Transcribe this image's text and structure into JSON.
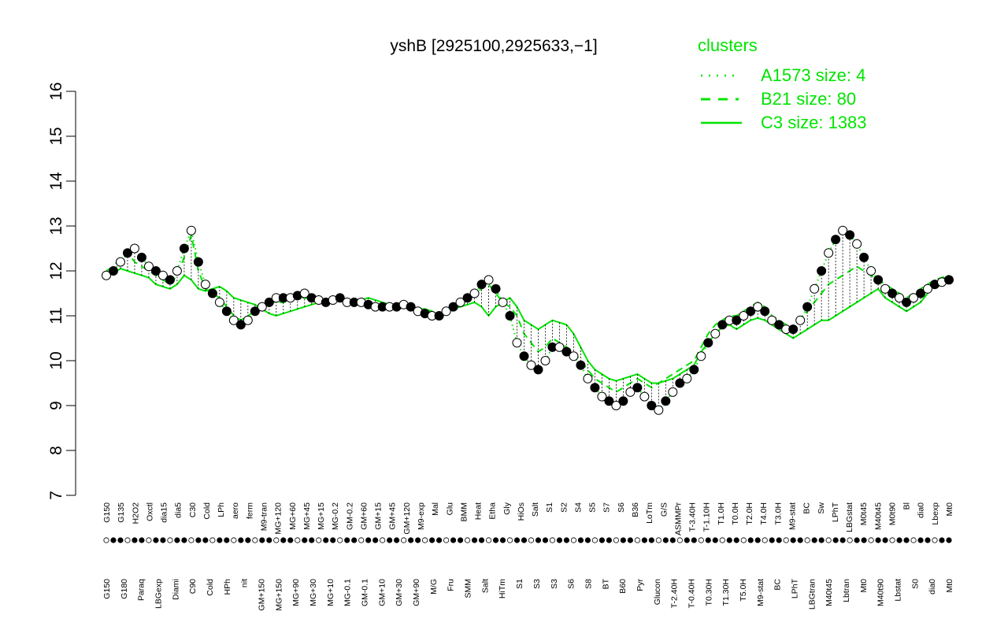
{
  "chart_data": {
    "type": "line",
    "title": "yshB [2925100,2925633,−1]",
    "xlabel": "",
    "ylabel": "",
    "ylim": [
      7,
      16
    ],
    "yticks": [
      7,
      8,
      9,
      10,
      11,
      12,
      13,
      14,
      15,
      16
    ],
    "grid": false,
    "legend": {
      "title": "clusters",
      "placement": "top-right",
      "entries": [
        {
          "label": "A1573 size: 4",
          "style": "dotted"
        },
        {
          "label": "B21 size: 80",
          "style": "dashed"
        },
        {
          "label": "C3 size: 1383",
          "style": "solid"
        }
      ]
    },
    "colors": {
      "cluster_lines": "#00e400",
      "points": "#000000",
      "axis": "#000000"
    },
    "x_labels_top": [
      "G150",
      "G135",
      "H2O2",
      "Oxctl",
      "dia15",
      "dia5",
      "C30",
      "Cold",
      "LPh",
      "aero",
      "ferm",
      "M9-tran",
      "MG+120",
      "MG+60",
      "MG+45",
      "MG+15",
      "MG-0.2",
      "GM-0.2",
      "GM+60",
      "GM+15",
      "GM+45",
      "GM+120",
      "M9-exp",
      "Mal",
      "Glu",
      "BMM",
      "Heat",
      "Etha",
      "Gly",
      "HiOs",
      "Salt",
      "S1",
      "S2",
      "S4",
      "S5",
      "S7",
      "S6",
      "B36",
      "LoTm",
      "G/S",
      "ASMMPr",
      "T-3.40H",
      "T-1.10H",
      "T1.0H",
      "T0.0H",
      "T2.0H",
      "T4.0H",
      "T3.0H",
      "M9-stat",
      "BC",
      "Sw",
      "LPhT",
      "LBGstat",
      "M0t45",
      "M40t45",
      "M0t90",
      "Bl",
      "dia0",
      "Lbexp",
      "Mt0"
    ],
    "x_labels_bottom": [
      "G150",
      "G180",
      "Paraq",
      "LBGexp",
      "Diami",
      "C90",
      "Cold",
      "HPh",
      "nit",
      "GM+150",
      "MG+150",
      "MG+90",
      "MG+30",
      "MG+10",
      "MG-0.1",
      "GM-0.1",
      "GM+10",
      "GM+30",
      "GM+90",
      "M/G",
      "Fru",
      "SMM",
      "Salt",
      "HiTm",
      "S1",
      "S3",
      "S3",
      "S6",
      "S8",
      "BT",
      "B60",
      "Pyr",
      "Glucon",
      "T-2.40H",
      "T-0.40H",
      "T0.30H",
      "T1.30H",
      "T5.0H",
      "M9-stat",
      "BC",
      "LPhT",
      "LBGtran",
      "M40t45",
      "Lbtran",
      "Mt0",
      "M40t90",
      "Lbstat",
      "S0",
      "dia0",
      "Mt0"
    ],
    "x": [
      1,
      2,
      3,
      4,
      5,
      6,
      7,
      8,
      9,
      10,
      11,
      12,
      13,
      14,
      15,
      16,
      17,
      18,
      19,
      20,
      21,
      22,
      23,
      24,
      25,
      26,
      27,
      28,
      29,
      30,
      31,
      32,
      33,
      34,
      35,
      36,
      37,
      38,
      39,
      40,
      41,
      42,
      43,
      44,
      45,
      46,
      47,
      48,
      49,
      50,
      51,
      52,
      53,
      54,
      55,
      56,
      57,
      58,
      59,
      60,
      61,
      62,
      63,
      64,
      65,
      66,
      67,
      68,
      69,
      70,
      71,
      72,
      73,
      74,
      75,
      76,
      77,
      78,
      79,
      80,
      81,
      82,
      83,
      84,
      85,
      86,
      87,
      88,
      89,
      90,
      91,
      92,
      93,
      94,
      95,
      96,
      97,
      98,
      99,
      100,
      101,
      102,
      103,
      104,
      105,
      106,
      107,
      108,
      109,
      110,
      111,
      112,
      113,
      114,
      115,
      116,
      117,
      118,
      119,
      120
    ],
    "series": [
      {
        "style": "solid",
        "values": [
          11.9,
          11.95,
          12.05,
          12.0,
          11.95,
          11.9,
          11.85,
          11.7,
          11.65,
          11.6,
          11.7,
          11.9,
          11.8,
          11.6,
          11.55,
          11.6,
          11.65,
          11.55,
          11.4,
          11.35,
          11.3,
          11.25,
          11.15,
          11.05,
          11.0,
          11.05,
          11.1,
          11.15,
          11.2,
          11.25,
          11.3,
          11.3,
          11.35,
          11.35,
          11.3,
          11.3,
          11.35,
          11.4,
          11.35,
          11.3,
          11.25,
          11.2,
          11.25,
          11.2,
          11.15,
          11.15,
          11.1,
          11.0,
          11.05,
          11.15,
          11.2,
          11.25,
          11.3,
          11.2,
          11.0,
          11.2,
          11.3,
          11.4,
          11.2,
          10.9,
          10.8,
          10.7,
          10.8,
          10.9,
          10.85,
          10.8,
          10.6,
          10.3,
          10.0,
          9.8,
          9.7,
          9.6,
          9.55,
          9.6,
          9.65,
          9.7,
          9.6,
          9.5,
          9.5,
          9.55,
          9.6,
          9.7,
          9.8,
          9.9,
          10.2,
          10.4,
          10.6,
          10.75,
          10.8,
          10.7,
          10.8,
          10.9,
          10.95,
          10.9,
          10.8,
          10.7,
          10.6,
          10.5,
          10.6,
          10.7,
          10.8,
          10.9,
          10.9,
          11.0,
          11.1,
          11.2,
          11.3,
          11.4,
          11.5,
          11.6,
          11.4,
          11.3,
          11.2,
          11.1,
          11.2,
          11.3,
          11.5,
          11.7,
          11.8,
          11.9
        ]
      },
      {
        "style": "dashed",
        "values": [
          12.0,
          12.1,
          12.3,
          12.4,
          12.2,
          12.1,
          12.0,
          11.9,
          11.8,
          11.7,
          11.9,
          12.3,
          12.8,
          12.0,
          11.6,
          11.5,
          11.4,
          11.2,
          11.0,
          10.9,
          11.0,
          11.1,
          11.2,
          11.3,
          11.3,
          11.3,
          11.35,
          11.4,
          11.4,
          11.35,
          11.3,
          11.3,
          11.35,
          11.35,
          11.3,
          11.3,
          11.3,
          11.3,
          11.25,
          11.2,
          11.2,
          11.2,
          11.25,
          11.2,
          11.15,
          11.1,
          11.1,
          11.0,
          11.1,
          11.2,
          11.3,
          11.4,
          11.5,
          11.6,
          11.7,
          11.5,
          11.3,
          11.2,
          11.0,
          10.6,
          10.4,
          10.2,
          10.3,
          10.5,
          10.4,
          10.3,
          10.2,
          10.0,
          9.8,
          9.6,
          9.5,
          9.4,
          9.3,
          9.4,
          9.5,
          9.6,
          9.5,
          9.4,
          9.5,
          9.6,
          9.7,
          9.8,
          9.9,
          10.0,
          10.3,
          10.6,
          10.8,
          10.9,
          11.0,
          11.0,
          11.1,
          11.2,
          11.3,
          11.2,
          11.0,
          10.9,
          10.8,
          10.7,
          10.9,
          11.1,
          11.3,
          11.5,
          11.7,
          11.8,
          11.9,
          12.0,
          12.1,
          12.0,
          11.9,
          11.8,
          11.7,
          11.6,
          11.5,
          11.4,
          11.5,
          11.6,
          11.7,
          11.8,
          11.85,
          11.9
        ]
      },
      {
        "style": "dotted",
        "values": [
          11.9,
          12.0,
          12.2,
          12.4,
          12.5,
          12.3,
          12.1,
          12.0,
          11.9,
          11.8,
          12.0,
          12.5,
          12.9,
          12.2,
          11.7,
          11.5,
          11.3,
          11.1,
          10.9,
          10.8,
          10.9,
          11.1,
          11.2,
          11.3,
          11.4,
          11.4,
          11.4,
          11.45,
          11.5,
          11.4,
          11.35,
          11.3,
          11.35,
          11.4,
          11.3,
          11.3,
          11.3,
          11.25,
          11.2,
          11.2,
          11.2,
          11.2,
          11.25,
          11.2,
          11.1,
          11.05,
          11.0,
          11.0,
          11.1,
          11.2,
          11.3,
          11.4,
          11.5,
          11.7,
          11.8,
          11.6,
          11.3,
          11.0,
          10.4,
          10.1,
          9.9,
          9.8,
          10.0,
          10.3,
          10.3,
          10.2,
          10.1,
          9.9,
          9.6,
          9.4,
          9.2,
          9.1,
          9.0,
          9.1,
          9.3,
          9.4,
          9.2,
          9.0,
          8.9,
          9.1,
          9.3,
          9.5,
          9.6,
          9.8,
          10.1,
          10.4,
          10.6,
          10.8,
          10.9,
          10.9,
          11.0,
          11.1,
          11.2,
          11.1,
          10.9,
          10.8,
          10.7,
          10.7,
          10.9,
          11.2,
          11.6,
          12.0,
          12.4,
          12.7,
          12.9,
          12.8,
          12.6,
          12.3,
          12.0,
          11.8,
          11.6,
          11.5,
          11.4,
          11.3,
          11.4,
          11.5,
          11.6,
          11.7,
          11.75,
          11.8
        ]
      }
    ]
  }
}
